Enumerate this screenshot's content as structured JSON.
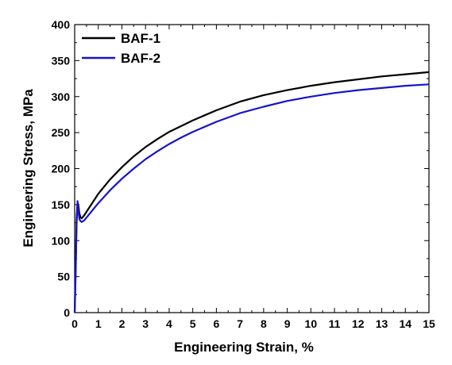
{
  "chart_data": {
    "type": "line",
    "title": "",
    "xlabel": "Engineering Strain, %",
    "ylabel": "Engineering Stress, MPa",
    "xlim": [
      0,
      15
    ],
    "ylim": [
      0,
      400
    ],
    "xticks": [
      0,
      1,
      2,
      3,
      4,
      5,
      6,
      7,
      8,
      9,
      10,
      11,
      12,
      13,
      14,
      15
    ],
    "yticks": [
      0,
      50,
      100,
      150,
      200,
      250,
      300,
      350,
      400
    ],
    "grid": false,
    "legend_position": "top-left",
    "series": [
      {
        "name": "BAF-1",
        "color": "#000000",
        "x": [
          0,
          0.04,
          0.08,
          0.12,
          0.16,
          0.2,
          0.25,
          0.3,
          0.4,
          0.5,
          0.7,
          1,
          1.5,
          2,
          2.5,
          3,
          3.5,
          4,
          4.5,
          5,
          6,
          7,
          8,
          9,
          10,
          11,
          12,
          13,
          14,
          15
        ],
        "y": [
          0,
          60,
          130,
          153,
          148,
          138,
          132,
          131,
          135,
          140,
          150,
          165,
          185,
          202,
          217,
          230,
          241,
          251,
          259,
          267,
          281,
          293,
          302,
          309,
          315,
          320,
          324,
          328,
          331,
          334
        ]
      },
      {
        "name": "BAF-2",
        "color": "#1515c8",
        "x": [
          0,
          0.04,
          0.08,
          0.12,
          0.16,
          0.2,
          0.25,
          0.3,
          0.4,
          0.5,
          0.7,
          1,
          1.5,
          2,
          2.5,
          3,
          3.5,
          4,
          4.5,
          5,
          6,
          7,
          8,
          9,
          10,
          11,
          12,
          13,
          14,
          15
        ],
        "y": [
          0,
          50,
          120,
          155,
          140,
          130,
          127,
          126,
          128,
          132,
          140,
          152,
          170,
          186,
          200,
          213,
          224,
          234,
          243,
          251,
          265,
          277,
          286,
          294,
          300,
          305,
          309,
          312,
          315,
          317
        ]
      }
    ]
  }
}
